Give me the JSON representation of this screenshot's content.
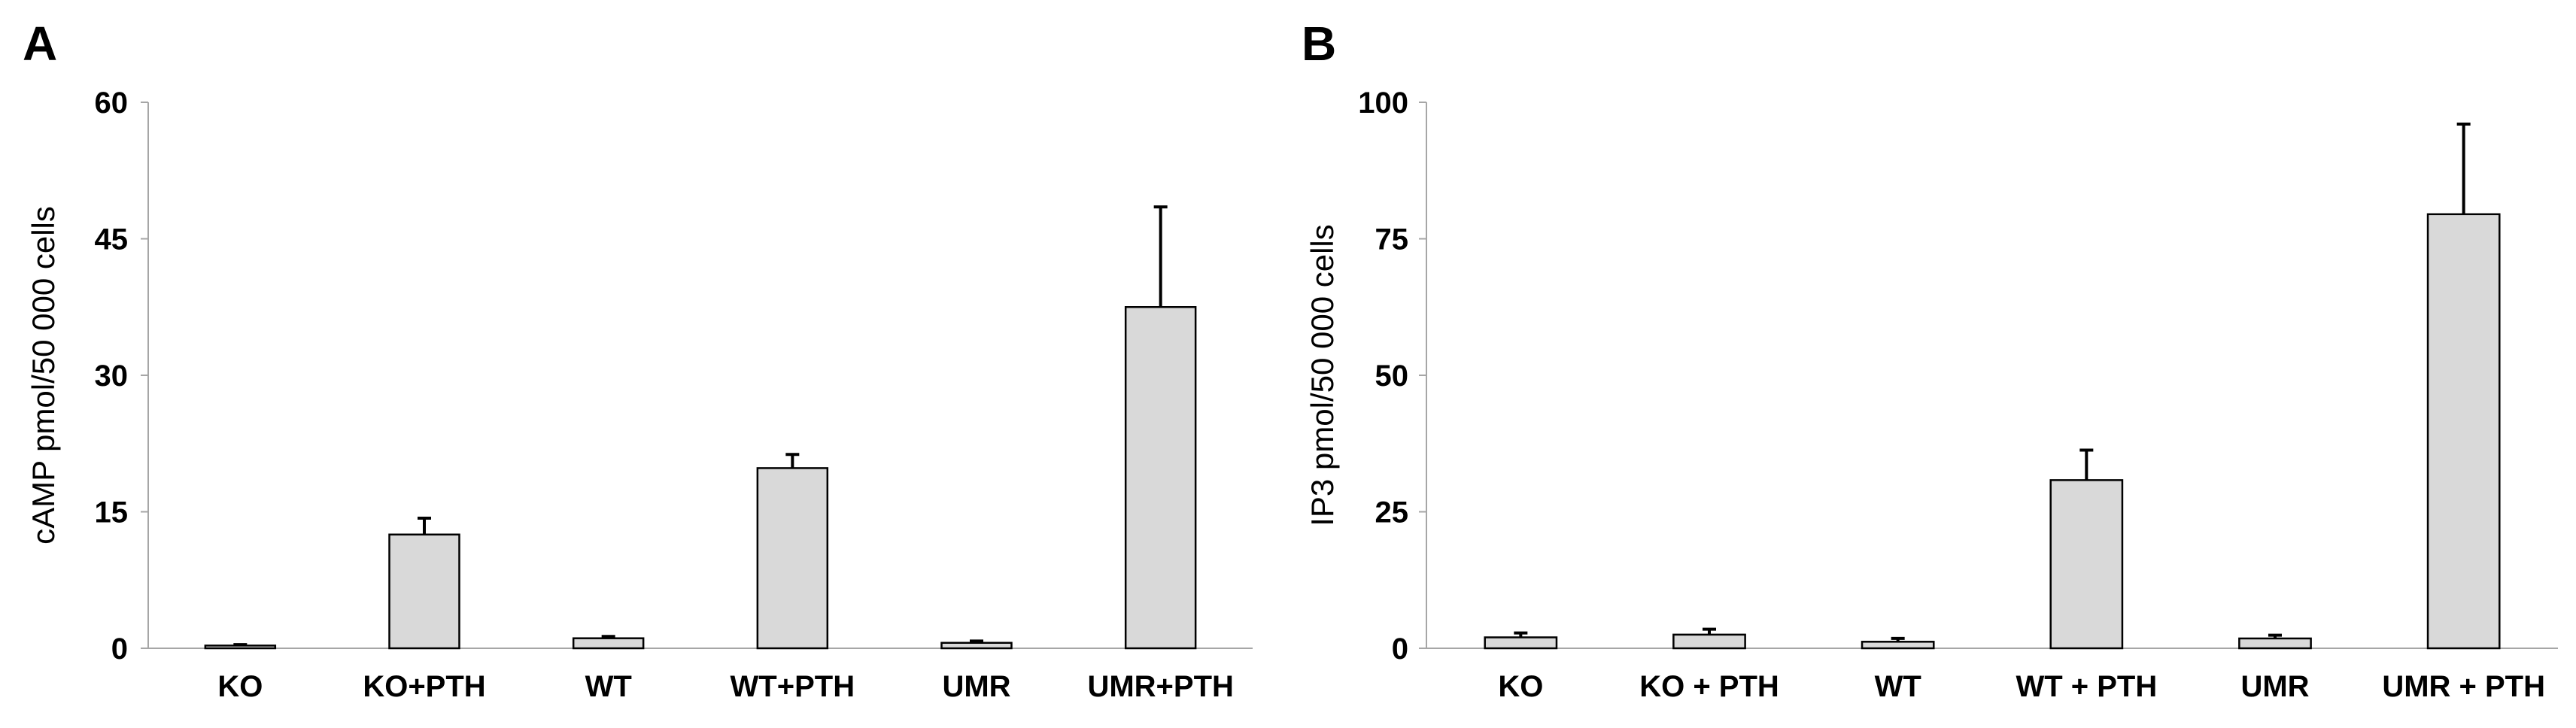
{
  "chart_data": [
    {
      "type": "bar",
      "panel_label": "A",
      "title": "",
      "xlabel": "",
      "ylabel": "cAMP pmol/50 000 cells",
      "ylim": [
        0,
        60
      ],
      "yticks": [
        0,
        15,
        30,
        45,
        60
      ],
      "categories": [
        "KO",
        "KO+PTH",
        "WT",
        "WT+PTH",
        "UMR",
        "UMR+PTH"
      ],
      "values": [
        0.3,
        12.5,
        1.1,
        19.8,
        0.6,
        37.5
      ],
      "errors": [
        0.1,
        1.8,
        0.2,
        1.5,
        0.2,
        11.0
      ],
      "bar_color": "#d9d9d9",
      "grid": false
    },
    {
      "type": "bar",
      "panel_label": "B",
      "title": "",
      "xlabel": "",
      "ylabel": "IP3 pmol/50 000 cells",
      "ylim": [
        0,
        100
      ],
      "yticks": [
        0,
        25,
        50,
        75,
        100
      ],
      "categories": [
        "KO",
        "KO + PTH",
        "WT",
        "WT + PTH",
        "UMR",
        "UMR + PTH"
      ],
      "values": [
        2.0,
        2.5,
        1.2,
        30.8,
        1.8,
        79.5
      ],
      "errors": [
        0.8,
        1.0,
        0.6,
        5.5,
        0.6,
        16.5
      ],
      "bar_color": "#d9d9d9",
      "grid": false
    }
  ]
}
